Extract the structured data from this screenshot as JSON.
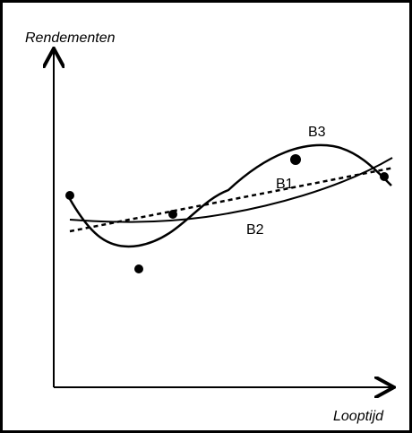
{
  "axes": {
    "y_label": "Rendementen",
    "x_label": "Looptijd"
  },
  "curves": [
    {
      "label": "B3"
    },
    {
      "label": "B1"
    },
    {
      "label": "B2"
    }
  ]
}
